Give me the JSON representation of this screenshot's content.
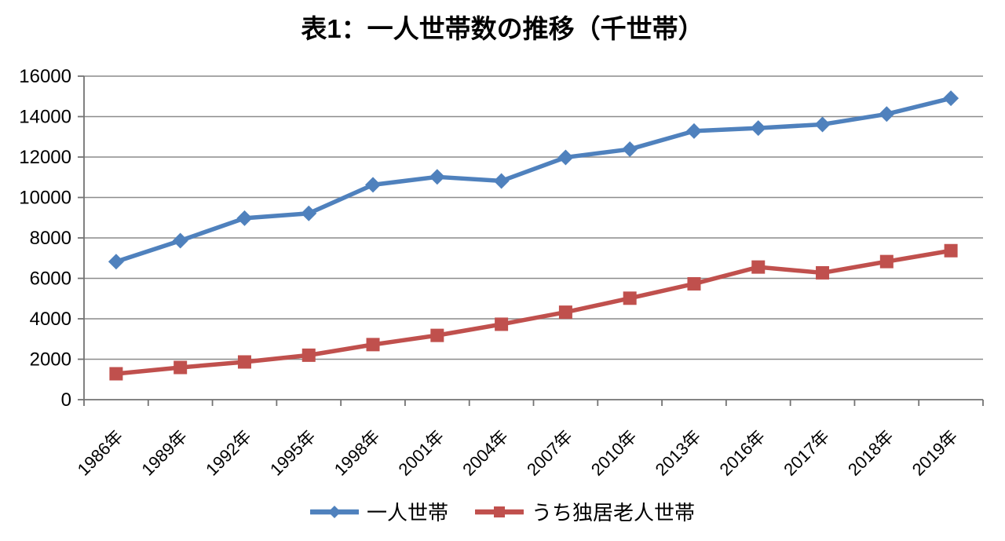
{
  "page": {
    "background_color": "#ffffff",
    "text_color": "#000000"
  },
  "chart_data": {
    "type": "line",
    "title": "表1：一人世帯数の推移（千世帯）",
    "xlabel": "",
    "ylabel": "",
    "categories": [
      "1986年",
      "1989年",
      "1992年",
      "1995年",
      "1998年",
      "2001年",
      "2004年",
      "2007年",
      "2010年",
      "2013年",
      "2016年",
      "2017年",
      "2018年",
      "2019年"
    ],
    "series": [
      {
        "name": "一人世帯",
        "color": "#4F81BD",
        "marker": "diamond",
        "values": [
          6826,
          7866,
          8974,
          9213,
          10627,
          11017,
          10817,
          11983,
          12386,
          13285,
          13434,
          13613,
          14125,
          14907
        ]
      },
      {
        "name": "うち独居老人世帯",
        "color": "#C0504D",
        "marker": "square",
        "values": [
          1281,
          1592,
          1865,
          2199,
          2724,
          3179,
          3730,
          4326,
          5018,
          5730,
          6559,
          6274,
          6830,
          7369
        ]
      }
    ],
    "ylim": [
      0,
      16000
    ],
    "y_tick_step": 2000,
    "y_tick_labels": [
      "0",
      "2000",
      "4000",
      "6000",
      "8000",
      "10000",
      "12000",
      "14000",
      "16000"
    ],
    "grid": true,
    "grid_color": "#8C8C8C",
    "axis_color": "#737373",
    "legend_position": "bottom"
  }
}
